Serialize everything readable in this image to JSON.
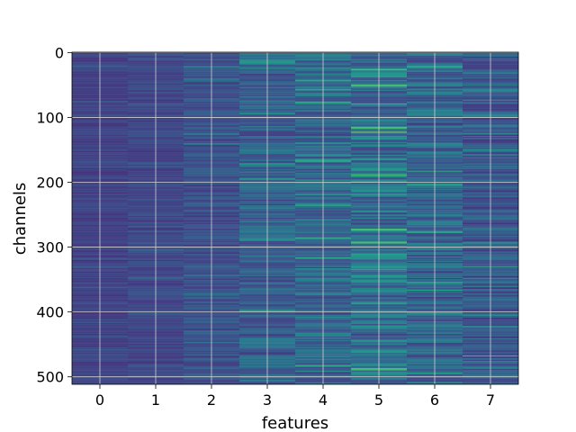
{
  "chart_data": {
    "type": "heatmap",
    "title": "",
    "xlabel": "features",
    "ylabel": "channels",
    "n_rows": 512,
    "n_cols": 8,
    "x_ticks": [
      "0",
      "1",
      "2",
      "3",
      "4",
      "5",
      "6",
      "7"
    ],
    "y_ticks": [
      "0",
      "100",
      "200",
      "300",
      "400",
      "500"
    ],
    "colormap": "viridis",
    "grid": true,
    "column_intensity": [
      0.22,
      0.24,
      0.28,
      0.34,
      0.38,
      0.42,
      0.36,
      0.3
    ],
    "column_variation": [
      0.05,
      0.06,
      0.09,
      0.13,
      0.16,
      0.2,
      0.16,
      0.12
    ],
    "highlights": [
      {
        "col": 3,
        "row": 25,
        "value": 0.55
      },
      {
        "col": 3,
        "row": 175,
        "value": 0.5
      },
      {
        "col": 3,
        "row": 185,
        "value": 0.5
      },
      {
        "col": 4,
        "row": 42,
        "value": 0.55
      },
      {
        "col": 4,
        "row": 300,
        "value": 0.6
      },
      {
        "col": 5,
        "row": 123,
        "value": 0.95
      },
      {
        "col": 5,
        "row": 270,
        "value": 0.55
      },
      {
        "col": 5,
        "row": 490,
        "value": 0.6
      },
      {
        "col": 6,
        "row": 183,
        "value": 0.7
      },
      {
        "col": 6,
        "row": 350,
        "value": 0.5
      },
      {
        "col": 7,
        "row": 50,
        "value": 0.55
      },
      {
        "col": 7,
        "row": 150,
        "value": 0.6
      },
      {
        "col": 7,
        "row": 163,
        "value": 0.65
      },
      {
        "col": 7,
        "row": 330,
        "value": 0.7
      },
      {
        "col": 7,
        "row": 400,
        "value": 0.7
      },
      {
        "col": 7,
        "row": 468,
        "value": 0.85
      }
    ]
  }
}
